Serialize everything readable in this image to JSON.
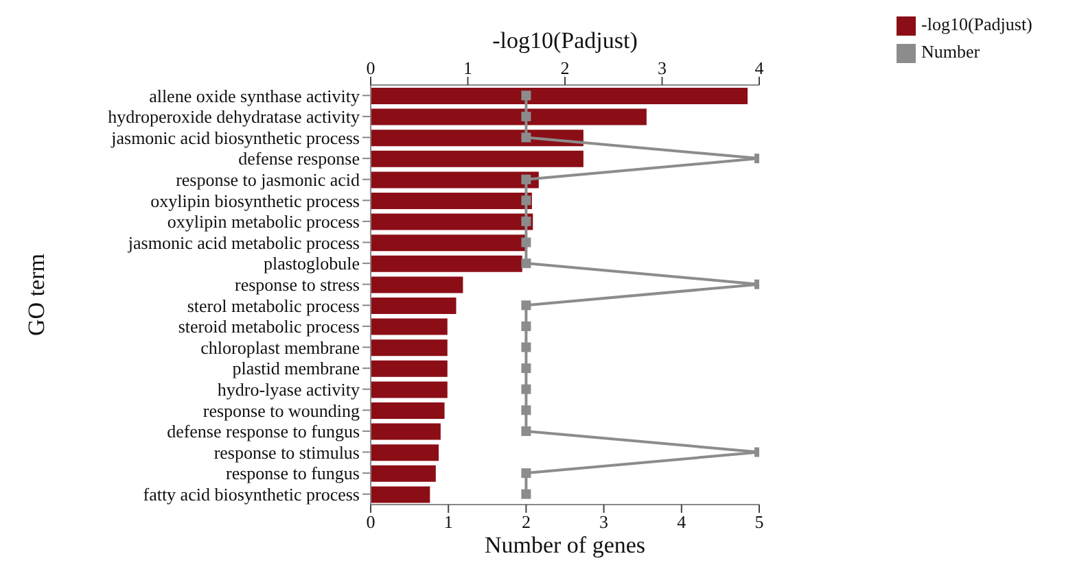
{
  "chart_data": {
    "type": "bar",
    "orientation": "horizontal",
    "ylabel": "GO term",
    "xlabel": "Number of genes",
    "x2label": "-log10(Padjust)",
    "categories": [
      "allene oxide synthase activity",
      "hydroperoxide dehydratase activity",
      "jasmonic acid biosynthetic process",
      "defense response",
      "response to jasmonic acid",
      "oxylipin biosynthetic process",
      "oxylipin metabolic process",
      "jasmonic acid metabolic process",
      "plastoglobule",
      "response to stress",
      "sterol metabolic process",
      "steroid metabolic process",
      "chloroplast membrane",
      "plastid membrane",
      "hydro-lyase activity",
      "response to wounding",
      "defense response to fungus",
      "response to stimulus",
      "response to fungus",
      "fatty acid biosynthetic process"
    ],
    "series": [
      {
        "name": "-log10(Padjust)",
        "axis": "x2",
        "color": "#8b0e16",
        "values": [
          3.88,
          2.84,
          2.19,
          2.19,
          1.73,
          1.66,
          1.67,
          1.61,
          1.56,
          0.95,
          0.88,
          0.79,
          0.79,
          0.79,
          0.79,
          0.76,
          0.72,
          0.7,
          0.67,
          0.61
        ]
      },
      {
        "name": "Number",
        "type": "line",
        "color": "#8c8c8c",
        "marker": "square",
        "values": [
          2,
          2,
          2,
          5,
          2,
          2,
          2,
          2,
          2,
          5,
          2,
          2,
          2,
          2,
          2,
          2,
          2,
          5,
          2,
          2
        ]
      }
    ],
    "xlim": [
      0,
      5
    ],
    "xticks": [
      0,
      1,
      2,
      3,
      4,
      5
    ],
    "x2lim": [
      0,
      4
    ],
    "x2ticks": [
      0,
      1,
      2,
      3,
      4
    ],
    "legend": "top right"
  }
}
